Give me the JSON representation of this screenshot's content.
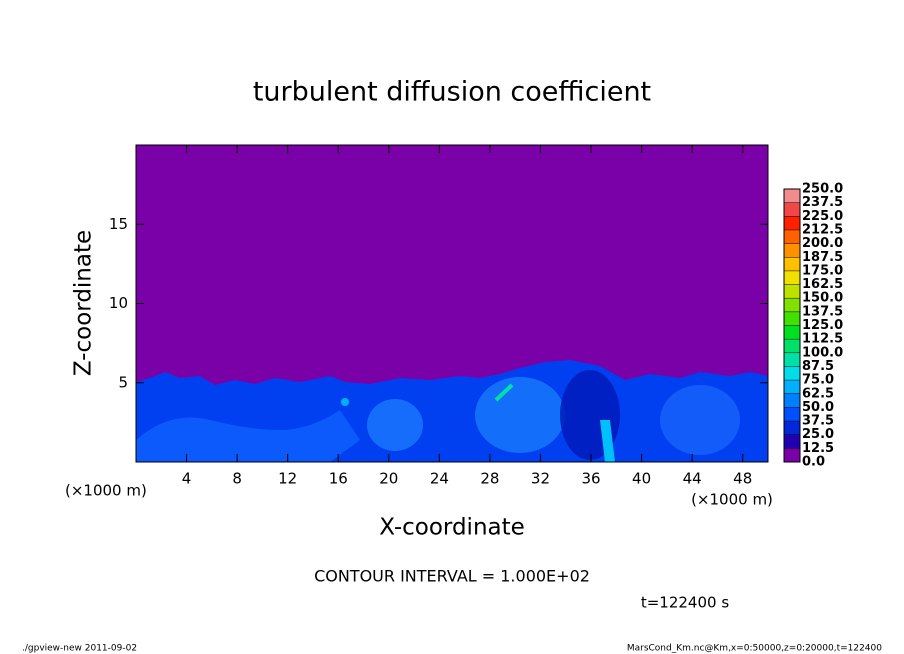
{
  "chart_data": {
    "type": "heatmap",
    "title": "turbulent diffusion coefficient",
    "x_label": "X-coordinate",
    "y_label": "Z-coordinate",
    "x_unit": "(×1000 m)",
    "y_unit": "(×1000 m)",
    "xlim": [
      0,
      50
    ],
    "ylim": [
      0,
      20
    ],
    "xticks": [
      4,
      8,
      12,
      16,
      20,
      24,
      28,
      32,
      36,
      40,
      44,
      48
    ],
    "yticks": [
      5,
      10,
      15
    ],
    "colorbar": {
      "ticks": [
        {
          "value": 0,
          "label": "0.0"
        },
        12.5,
        {
          "value": 25,
          "label": "25.0"
        },
        37.5,
        {
          "value": 50,
          "label": "50.0"
        },
        62.5,
        {
          "value": 75,
          "label": "75.0"
        },
        87.5,
        {
          "value": 100,
          "label": "100.0"
        },
        112.5,
        {
          "value": 125,
          "label": "125.0"
        },
        137.5,
        {
          "value": 150,
          "label": "150.0"
        },
        162.5,
        {
          "value": 175,
          "label": "175.0"
        },
        187.5,
        {
          "value": 200,
          "label": "200.0"
        },
        212.5,
        {
          "value": 225,
          "label": "225.0"
        },
        237.5,
        {
          "value": 250,
          "label": "250.0"
        }
      ],
      "colors": [
        "#7a00a8",
        "#2000b0",
        "#0028d8",
        "#0050ff",
        "#0080ff",
        "#00b0ff",
        "#00dce8",
        "#00e0a8",
        "#00e068",
        "#00e020",
        "#40e000",
        "#80e000",
        "#c0e000",
        "#f0e000",
        "#ffc000",
        "#ff9000",
        "#ff6000",
        "#ff2000",
        "#f04848",
        "#f08c8c"
      ]
    },
    "contour_interval": "CONTOUR INTERVAL = 1.000E+02",
    "time": "t=122400 s",
    "footer_left": "./gpview-new  2011-09-02",
    "footer_right": "MarsCond_Km.nc@Km,x=0:50000,z=0:20000,t=122400"
  }
}
